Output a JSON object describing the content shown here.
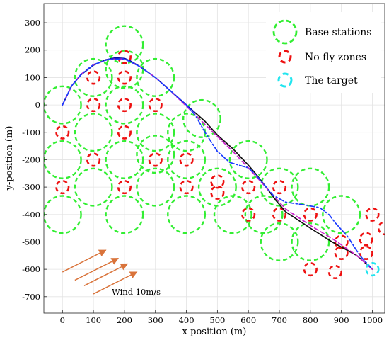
{
  "chart_data": {
    "type": "scatter",
    "title": "",
    "xlabel": "x-position (m)",
    "ylabel": "y-position (m)",
    "xlim": [
      -60,
      1040
    ],
    "ylim": [
      -760,
      370
    ],
    "xticks": [
      0,
      100,
      200,
      300,
      400,
      500,
      600,
      700,
      800,
      900,
      1000
    ],
    "yticks": [
      300,
      200,
      100,
      0,
      -100,
      -200,
      -300,
      -400,
      -500,
      -600,
      -700
    ],
    "grid": true,
    "legend_position": "top-right",
    "colors": {
      "base_station": "#33ee33",
      "no_fly_zone": "#ee1111",
      "target": "#22e5ef",
      "path_black": "#111111",
      "path_navy": "#0a0aa0",
      "path_magenta": "#cc22cc",
      "path_blue_dashdot": "#1a3bff",
      "wind_arrow": "#d9733a"
    },
    "legend": [
      {
        "label": "Base stations",
        "kind": "base_station"
      },
      {
        "label": "No fly zones",
        "kind": "no_fly_zone"
      },
      {
        "label": "The target",
        "kind": "target"
      }
    ],
    "annotation": {
      "text": "Wind 10m/s"
    },
    "base_stations": {
      "radius": 60,
      "centers": [
        [
          200,
          220
        ],
        [
          100,
          100
        ],
        [
          200,
          130
        ],
        [
          300,
          100
        ],
        [
          0,
          0
        ],
        [
          200,
          0
        ],
        [
          100,
          -100
        ],
        [
          300,
          -100
        ],
        [
          400,
          -100
        ],
        [
          450,
          -50
        ],
        [
          0,
          -200
        ],
        [
          200,
          -200
        ],
        [
          300,
          -180
        ],
        [
          400,
          -200
        ],
        [
          600,
          -200
        ],
        [
          100,
          -300
        ],
        [
          300,
          -300
        ],
        [
          500,
          -300
        ],
        [
          0,
          -400
        ],
        [
          200,
          -400
        ],
        [
          400,
          -400
        ],
        [
          550,
          -400
        ],
        [
          650,
          -400
        ],
        [
          700,
          -300
        ],
        [
          800,
          -300
        ],
        [
          900,
          -400
        ],
        [
          800,
          -500
        ],
        [
          700,
          -500
        ]
      ]
    },
    "no_fly_zones": {
      "radius": 20,
      "centers": [
        [
          200,
          175
        ],
        [
          100,
          100
        ],
        [
          200,
          100
        ],
        [
          100,
          0
        ],
        [
          200,
          0
        ],
        [
          300,
          0
        ],
        [
          0,
          -100
        ],
        [
          200,
          -100
        ],
        [
          100,
          -200
        ],
        [
          300,
          -200
        ],
        [
          400,
          -200
        ],
        [
          0,
          -300
        ],
        [
          200,
          -300
        ],
        [
          400,
          -300
        ],
        [
          500,
          -280
        ],
        [
          500,
          -320
        ],
        [
          600,
          -300
        ],
        [
          700,
          -300
        ],
        [
          600,
          -400
        ],
        [
          700,
          -400
        ],
        [
          800,
          -400
        ],
        [
          900,
          -500
        ],
        [
          900,
          -540
        ],
        [
          980,
          -540
        ],
        [
          980,
          -490
        ],
        [
          1000,
          -400
        ],
        [
          1040,
          -450
        ],
        [
          800,
          -600
        ],
        [
          880,
          -610
        ]
      ]
    },
    "target": {
      "center": [
        1000,
        -600
      ],
      "radius": 20
    },
    "wind_arrows": [
      {
        "from": [
          0,
          -610
        ],
        "to": [
          140,
          -530
        ]
      },
      {
        "from": [
          40,
          -640
        ],
        "to": [
          180,
          -560
        ]
      },
      {
        "from": [
          70,
          -660
        ],
        "to": [
          210,
          -580
        ]
      },
      {
        "from": [
          100,
          -690
        ],
        "to": [
          240,
          -610
        ]
      }
    ],
    "series": [
      {
        "style": "solid",
        "color_key": "path_navy",
        "x": [
          0,
          30,
          60,
          100,
          140,
          170,
          200,
          220,
          250,
          300,
          350,
          400,
          430
        ],
        "y": [
          0,
          70,
          110,
          145,
          165,
          172,
          170,
          160,
          140,
          100,
          50,
          0,
          -30
        ]
      },
      {
        "style": "solid",
        "color_key": "path_black",
        "x": [
          430,
          460,
          500,
          550,
          600,
          630,
          650,
          690,
          720,
          800,
          870,
          950,
          1000
        ],
        "y": [
          -30,
          -60,
          -110,
          -160,
          -220,
          -260,
          -290,
          -350,
          -390,
          -450,
          -500,
          -550,
          -600
        ]
      },
      {
        "style": "dashed",
        "color_key": "path_magenta",
        "x": [
          0,
          30,
          60,
          100,
          150,
          200,
          250,
          300,
          350,
          400,
          450,
          500,
          550,
          600,
          640,
          680,
          720,
          800,
          880,
          950,
          1000
        ],
        "y": [
          0,
          70,
          112,
          147,
          167,
          168,
          140,
          100,
          50,
          -5,
          -60,
          -115,
          -170,
          -230,
          -280,
          -330,
          -380,
          -440,
          -495,
          -550,
          -600
        ]
      },
      {
        "style": "dashdot",
        "color_key": "path_blue_dashdot",
        "x": [
          0,
          30,
          60,
          100,
          150,
          200,
          250,
          300,
          350,
          400,
          430,
          460,
          500,
          540,
          570,
          600,
          620,
          650,
          680,
          720,
          780,
          830,
          860,
          880,
          920,
          960,
          1000
        ],
        "y": [
          0,
          70,
          112,
          147,
          167,
          168,
          140,
          100,
          50,
          0,
          -40,
          -100,
          -170,
          -210,
          -220,
          -230,
          -250,
          -290,
          -330,
          -355,
          -365,
          -375,
          -400,
          -430,
          -480,
          -550,
          -600
        ]
      }
    ]
  }
}
